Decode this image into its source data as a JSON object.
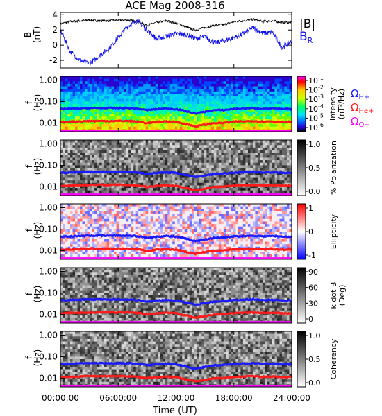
{
  "title": "ACE Mag 2008-316",
  "x_axis": {
    "label": "Time (UT)",
    "ticks": [
      "00:00:00",
      "06:00:00",
      "12:00:00",
      "18:00:00",
      "24:00:00"
    ],
    "tick_hours": [
      0,
      6,
      12,
      18,
      24
    ]
  },
  "freq_ticks": [
    "1.00",
    "0.10",
    "0.01"
  ],
  "freq_tick_values": [
    1.0,
    0.1,
    0.01
  ],
  "colors": {
    "b_total": "#000000",
    "b_r": "#1010e8",
    "h_plus": "#1a1aff",
    "he_plus": "#ff1a1a",
    "o_plus": "#ff00ff"
  },
  "legend": {
    "b_total": "|B|",
    "b_r_main": "B",
    "b_r_sub": "R",
    "omega": "Ω",
    "h_plus_sub": "H+",
    "he_plus_sub": "He+",
    "o_plus_sub": "O+"
  },
  "panels": [
    {
      "id": "mag",
      "ylabel": "B",
      "yunit": "(nT)",
      "yticks": [
        "4",
        "2",
        "0",
        "-2"
      ]
    },
    {
      "id": "intensity",
      "ylabel": "f",
      "yunit": "(Hz)",
      "colorbar_label": "Intensity",
      "colorbar_unit": "(nT²/Hz)",
      "colorbar_ticks": [
        {
          "base": "10",
          "exp": "-1"
        },
        {
          "base": "10",
          "exp": "-2"
        },
        {
          "base": "10",
          "exp": "-3"
        },
        {
          "base": "10",
          "exp": "-4"
        },
        {
          "base": "10",
          "exp": "-5"
        },
        {
          "base": "10",
          "exp": "-6"
        }
      ]
    },
    {
      "id": "polarization",
      "ylabel": "f",
      "yunit": "(Hz)",
      "colorbar_label": "% Polarization",
      "colorbar_ticks": [
        "1.0",
        "0.5",
        "0.0"
      ]
    },
    {
      "id": "ellipticity",
      "ylabel": "f",
      "yunit": "(Hz)",
      "colorbar_label": "Ellipticity",
      "colorbar_ticks": [
        "1",
        "0",
        "-1"
      ]
    },
    {
      "id": "kdotb",
      "ylabel": "f",
      "yunit": "(Hz)",
      "colorbar_label": "k dot B",
      "colorbar_unit": "(Deg)",
      "colorbar_ticks": [
        "90",
        "60",
        "30",
        "0"
      ]
    },
    {
      "id": "coherency",
      "ylabel": "f",
      "yunit": "(Hz)",
      "colorbar_label": "Coherency",
      "colorbar_ticks": [
        "1.0",
        "0.5",
        "0.0"
      ]
    }
  ],
  "chart_data": {
    "type": "line",
    "title": "ACE Mag 2008-316",
    "xlabel": "Time (UT)",
    "xlim_hours": [
      0,
      24
    ],
    "mag_ylim_nT": [
      -3,
      4.3
    ],
    "freq_ylim_hz": [
      0.004,
      1.5
    ],
    "freq_scale": "log",
    "series_mag": [
      {
        "name": "|B|",
        "hours": [
          0,
          1,
          2,
          3,
          4,
          5,
          6,
          7,
          8,
          9,
          10,
          11,
          12,
          13,
          14,
          15,
          16,
          17,
          18,
          19,
          20,
          21,
          22,
          23,
          24
        ],
        "values": [
          2.8,
          3.1,
          3.2,
          3.3,
          3.2,
          3.2,
          3.3,
          3.3,
          3.1,
          2.6,
          3.0,
          3.2,
          2.9,
          2.4,
          2.0,
          2.3,
          2.6,
          2.7,
          3.1,
          3.2,
          3.4,
          3.1,
          3.2,
          3.0,
          3.0
        ]
      },
      {
        "name": "B R",
        "hours": [
          0,
          1,
          2,
          3,
          4,
          5,
          6,
          7,
          8,
          9,
          10,
          11,
          12,
          13,
          14,
          15,
          16,
          17,
          18,
          19,
          20,
          21,
          22,
          23,
          24
        ],
        "values": [
          2.0,
          -0.8,
          -2.0,
          -2.4,
          -1.5,
          -0.5,
          1.0,
          2.5,
          3.2,
          2.0,
          0.8,
          1.2,
          1.5,
          1.4,
          0.9,
          1.1,
          0.3,
          0.6,
          1.0,
          1.5,
          2.3,
          1.6,
          1.7,
          -0.3,
          0.5
        ]
      }
    ],
    "series_freq": [
      {
        "name": "Ω H+",
        "hours": [
          0,
          1,
          2,
          3,
          4,
          5,
          6,
          7,
          8,
          9,
          10,
          11,
          12,
          13,
          14,
          15,
          16,
          17,
          18,
          19,
          20,
          21,
          22,
          23,
          24
        ],
        "hz": [
          0.045,
          0.047,
          0.048,
          0.05,
          0.05,
          0.05,
          0.05,
          0.05,
          0.047,
          0.04,
          0.045,
          0.048,
          0.045,
          0.036,
          0.028,
          0.034,
          0.04,
          0.041,
          0.046,
          0.048,
          0.05,
          0.047,
          0.048,
          0.045,
          0.045
        ]
      },
      {
        "name": "Ω He+",
        "hours": [
          0,
          1,
          2,
          3,
          4,
          5,
          6,
          7,
          8,
          9,
          10,
          11,
          12,
          13,
          14,
          15,
          16,
          17,
          18,
          19,
          20,
          21,
          22,
          23,
          24
        ],
        "hz": [
          0.011,
          0.0118,
          0.012,
          0.0125,
          0.0125,
          0.0125,
          0.0125,
          0.0125,
          0.0118,
          0.01,
          0.0113,
          0.012,
          0.0113,
          0.009,
          0.007,
          0.0085,
          0.01,
          0.0103,
          0.0115,
          0.012,
          0.0125,
          0.0118,
          0.012,
          0.0113,
          0.0113
        ]
      },
      {
        "name": "Ω O+",
        "hours": [
          0,
          24
        ],
        "hz": [
          0.0045,
          0.0045
        ]
      }
    ]
  }
}
